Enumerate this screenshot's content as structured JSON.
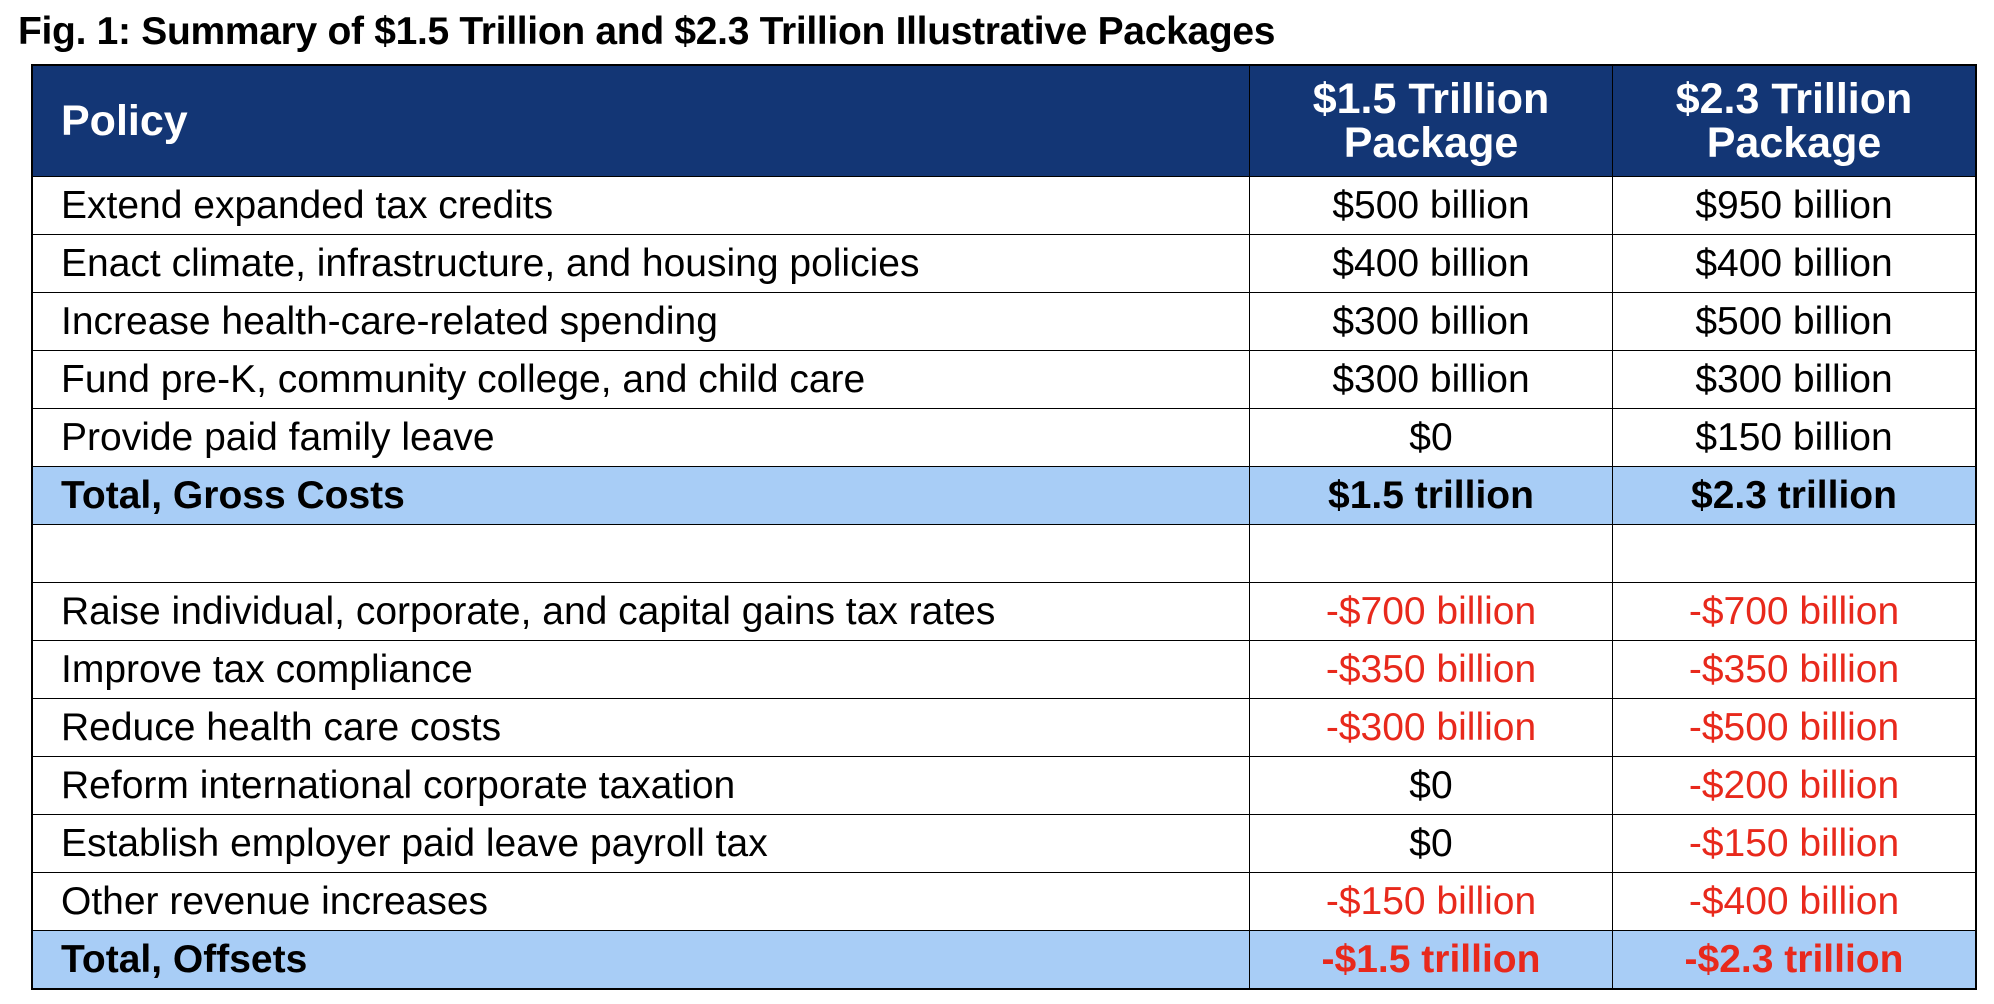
{
  "title": "Fig. 1: Summary of $1.5 Trillion and $2.3 Trillion Illustrative Packages",
  "colors": {
    "header_bg": "#133675",
    "total_bg": "#A8CDF6",
    "negative": "#E8291C"
  },
  "headers": {
    "policy": "Policy",
    "col1": "$1.5 Trillion Package",
    "col2": "$2.3 Trillion Package"
  },
  "rows": [
    {
      "policy": "Extend expanded tax credits",
      "v1": "$500 billion",
      "v2": "$950 billion"
    },
    {
      "policy": "Enact climate, infrastructure, and housing policies",
      "v1": "$400 billion",
      "v2": "$400 billion"
    },
    {
      "policy": "Increase health-care-related spending",
      "v1": "$300 billion",
      "v2": "$500 billion"
    },
    {
      "policy": "Fund pre-K, community college, and child care",
      "v1": "$300 billion",
      "v2": "$300 billion"
    },
    {
      "policy": "Provide paid family leave",
      "v1": "$0",
      "v2": "$150 billion"
    },
    {
      "policy": "Total, Gross Costs",
      "v1": "$1.5 trillion",
      "v2": "$2.3 trillion",
      "total": true
    },
    {
      "policy": "",
      "v1": "",
      "v2": ""
    },
    {
      "policy": "Raise individual, corporate, and capital gains tax rates",
      "v1": "-$700 billion",
      "v2": "-$700 billion"
    },
    {
      "policy": "Improve tax compliance",
      "v1": "-$350 billion",
      "v2": "-$350 billion"
    },
    {
      "policy": "Reduce health care costs",
      "v1": "-$300 billion",
      "v2": "-$500 billion"
    },
    {
      "policy": "Reform international corporate taxation",
      "v1": "$0",
      "v2": "-$200 billion"
    },
    {
      "policy": "Establish employer paid leave payroll tax",
      "v1": "$0",
      "v2": "-$150 billion"
    },
    {
      "policy": "Other revenue increases",
      "v1": "-$150 billion",
      "v2": "-$400 billion"
    },
    {
      "policy": "Total, Offsets",
      "v1": "-$1.5 trillion",
      "v2": "-$2.3 trillion",
      "total": true
    }
  ]
}
